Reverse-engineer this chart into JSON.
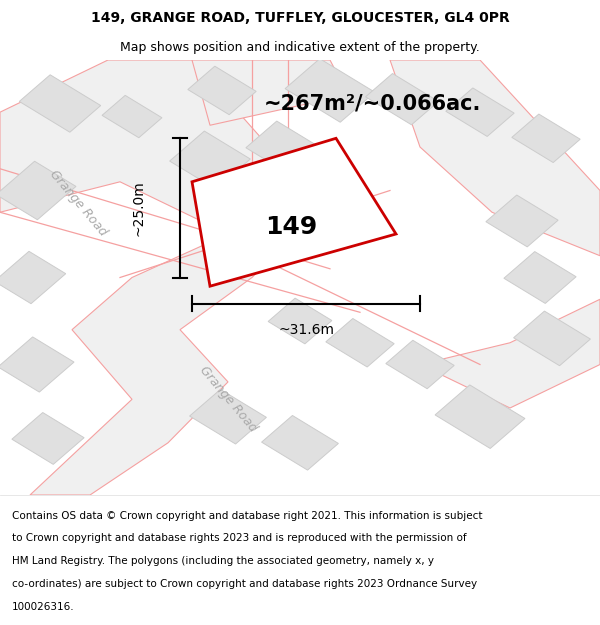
{
  "title_line1": "149, GRANGE ROAD, TUFFLEY, GLOUCESTER, GL4 0PR",
  "title_line2": "Map shows position and indicative extent of the property.",
  "area_text": "~267m²/~0.066ac.",
  "property_number": "149",
  "dim_width": "~31.6m",
  "dim_height": "~25.0m",
  "footer_lines": [
    "Contains OS data © Crown copyright and database right 2021. This information is subject",
    "to Crown copyright and database rights 2023 and is reproduced with the permission of",
    "HM Land Registry. The polygons (including the associated geometry, namely x, y",
    "co-ordinates) are subject to Crown copyright and database rights 2023 Ordnance Survey",
    "100026316."
  ],
  "bg_color": "#ffffff",
  "road_outline_color": "#f5a0a0",
  "road_fill_color": "#f0f0f0",
  "building_fill": "#e0e0e0",
  "building_edge": "#cccccc",
  "highlight_color": "#cc0000",
  "road_label_color": "#aaaaaa",
  "title_fontsize": 10,
  "subtitle_fontsize": 9,
  "area_fontsize": 15,
  "prop_num_fontsize": 18,
  "dim_fontsize": 10,
  "road_label_fontsize": 9,
  "footer_fontsize": 7.5
}
